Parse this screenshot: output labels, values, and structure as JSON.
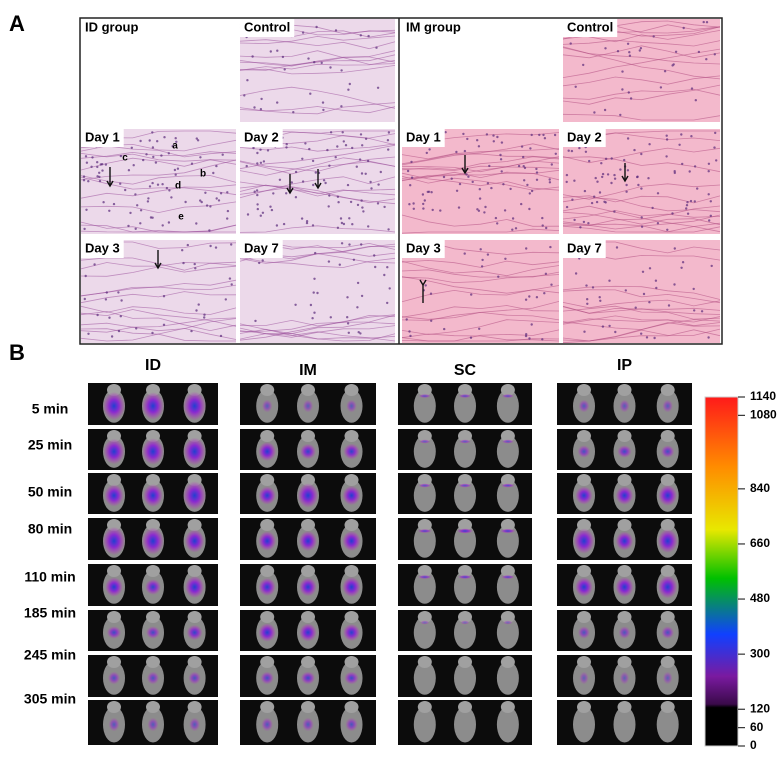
{
  "panel_a": {
    "label": "A",
    "id_group": {
      "title": "ID group",
      "control": "Control",
      "days": [
        "Day 1",
        "Day 2",
        "Day 3",
        "Day 7"
      ],
      "markers": [
        "a",
        "b",
        "c",
        "d",
        "e"
      ]
    },
    "im_group": {
      "title": "IM group",
      "control": "Control",
      "days": [
        "Day 1",
        "Day 2",
        "Day 3",
        "Day 7"
      ]
    }
  },
  "panel_b": {
    "label": "B",
    "groups": [
      "ID",
      "IM",
      "SC",
      "IP"
    ],
    "times": [
      "5 min",
      "25 min",
      "50 min",
      "80 min",
      "110 min",
      "185 min",
      "245 min",
      "305 min"
    ],
    "colorbar": {
      "ticks": [
        1140,
        1080,
        840,
        660,
        480,
        300,
        120,
        60,
        0
      ]
    }
  }
}
